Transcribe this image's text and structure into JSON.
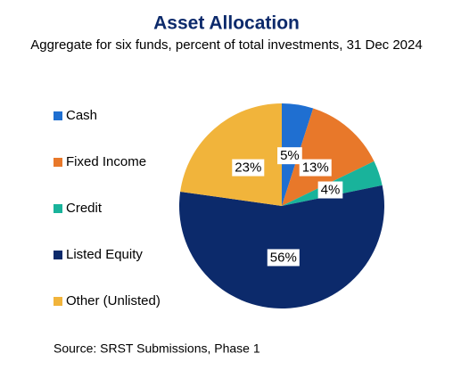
{
  "chart_data": {
    "type": "pie",
    "title": "Asset Allocation",
    "subtitle": "Aggregate for six funds, percent of total investments, 31 Dec 2024",
    "categories": [
      "Cash",
      "Fixed Income",
      "Credit",
      "Listed Equity",
      "Other (Unlisted)"
    ],
    "values": [
      5,
      13,
      4,
      56,
      23
    ],
    "value_labels": [
      "5%",
      "13%",
      "4%",
      "56%",
      "23%"
    ],
    "colors": [
      "#1f6fd1",
      "#e8782a",
      "#19b39b",
      "#0c2a6b",
      "#f1b43b"
    ],
    "legend": "left",
    "source": "Source: SRST Submissions, Phase 1"
  }
}
